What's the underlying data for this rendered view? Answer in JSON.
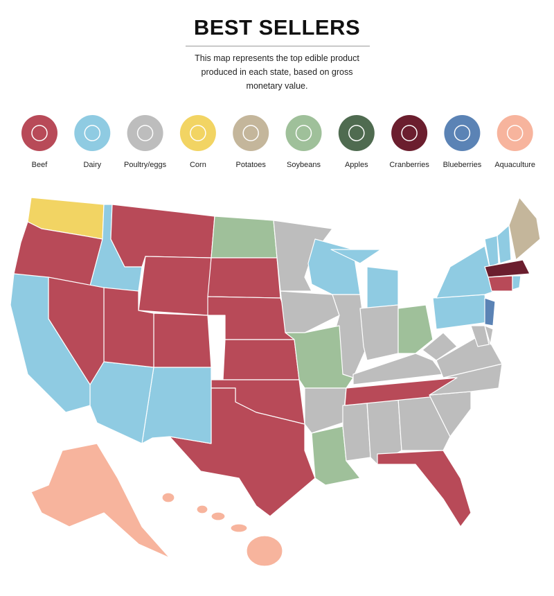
{
  "header": {
    "title": "BEST SELLERS",
    "subtitle": "This map represents the top edible product produced in each state, based on gross monetary value."
  },
  "legend": {
    "items": [
      {
        "label": "Beef",
        "color": "#b84a58"
      },
      {
        "label": "Dairy",
        "color": "#8fcbe2"
      },
      {
        "label": "Poultry/eggs",
        "color": "#bdbdbd"
      },
      {
        "label": "Corn",
        "color": "#f2d463"
      },
      {
        "label": "Potatoes",
        "color": "#c4b69b"
      },
      {
        "label": "Soybeans",
        "color": "#9fc09a"
      },
      {
        "label": "Apples",
        "color": "#4f6b50"
      },
      {
        "label": "Cranberries",
        "color": "#6b1e2e"
      },
      {
        "label": "Blueberries",
        "color": "#5b83b5"
      },
      {
        "label": "Aquaculture",
        "color": "#f7b49d"
      }
    ]
  }
}
